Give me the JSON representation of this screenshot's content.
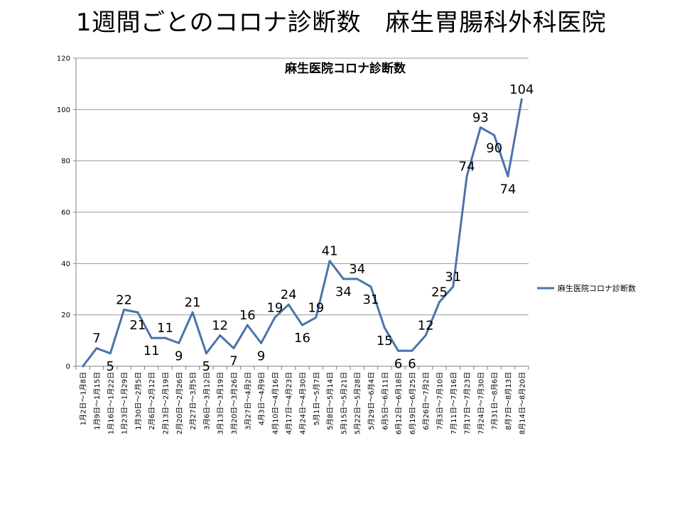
{
  "page_title": "1週間ごとのコロナ診断数　麻生胃腸科外科医院",
  "chart_data": {
    "type": "line",
    "title": "麻生医院コロナ診断数",
    "xlabel": "",
    "ylabel": "",
    "ylim": [
      0,
      120
    ],
    "yticks": [
      0,
      20,
      40,
      60,
      80,
      100,
      120
    ],
    "grid": true,
    "legend_position": "right",
    "categories": [
      "1月2日～1月8日",
      "1月9日～1月15日",
      "1月16日～1月22日",
      "1月23日～1月29日",
      "1月30日～2月5日",
      "2月6日～2月12日",
      "2月13日～2月19日",
      "2月20日～2月26日",
      "2月27日～3月5日",
      "3月6日～3月12日",
      "3月13日～3月19日",
      "3月20日～3月26日",
      "3月27日～4月2日",
      "4月3日～4月9日",
      "4月10日～4月16日",
      "4月17日～4月23日",
      "4月24日～4月30日",
      "5月1日～5月7日",
      "5月8日～5月14日",
      "5月15日～5月21日",
      "5月22日～5月28日",
      "5月29日～6月4日",
      "6月5日～6月11日",
      "6月12日～6月18日",
      "6月19日～6月25日",
      "6月26日～7月2日",
      "7月3日～7月10日",
      "7月11日～7月16日",
      "7月17日～7月23日",
      "7月24日～7月30日",
      "7月31日～8月6日",
      "8月7日～8月13日",
      "8月14日～8月20日"
    ],
    "series": [
      {
        "name": "麻生医院コロナ診断数",
        "color": "#4a74a8",
        "values": [
          0,
          7,
          5,
          22,
          21,
          11,
          11,
          9,
          21,
          5,
          12,
          7,
          16,
          9,
          19,
          24,
          16,
          19,
          41,
          34,
          34,
          31,
          15,
          6,
          6,
          12,
          25,
          31,
          74,
          93,
          90,
          74,
          104
        ]
      }
    ]
  }
}
